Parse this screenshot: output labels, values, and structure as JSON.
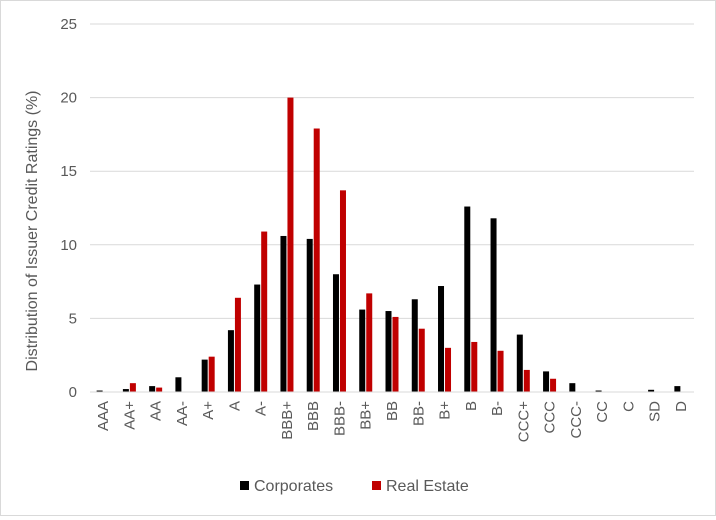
{
  "chart_data": {
    "type": "bar",
    "title": "",
    "xlabel": "",
    "ylabel": "Distribution of Issuer Credit  Ratings (%)",
    "ylim": [
      0,
      25
    ],
    "yticks": [
      0,
      5,
      10,
      15,
      20,
      25
    ],
    "grid": true,
    "legend_position": "bottom",
    "categories": [
      "AAA",
      "AA+",
      "AA",
      "AA-",
      "A+",
      "A",
      "A-",
      "BBB+",
      "BBB",
      "BBB-",
      "BB+",
      "BB",
      "BB-",
      "B+",
      "B",
      "B-",
      "CCC+",
      "CCC",
      "CCC-",
      "CC",
      "C",
      "SD",
      "D"
    ],
    "series": [
      {
        "name": "Corporates",
        "color": "#000000",
        "values": [
          0.1,
          0.2,
          0.4,
          1.0,
          2.2,
          4.2,
          7.3,
          10.6,
          10.4,
          8.0,
          5.6,
          5.5,
          6.3,
          7.2,
          12.6,
          11.8,
          3.9,
          1.4,
          0.6,
          0.1,
          0.0,
          0.15,
          0.4
        ]
      },
      {
        "name": "Real Estate",
        "color": "#c00000",
        "values": [
          0.0,
          0.6,
          0.3,
          0.0,
          2.4,
          6.4,
          10.9,
          20.0,
          17.9,
          13.7,
          6.7,
          5.1,
          4.3,
          3.0,
          3.4,
          2.8,
          1.5,
          0.9,
          0.0,
          0.0,
          0.0,
          0.0,
          0.0
        ]
      }
    ]
  }
}
